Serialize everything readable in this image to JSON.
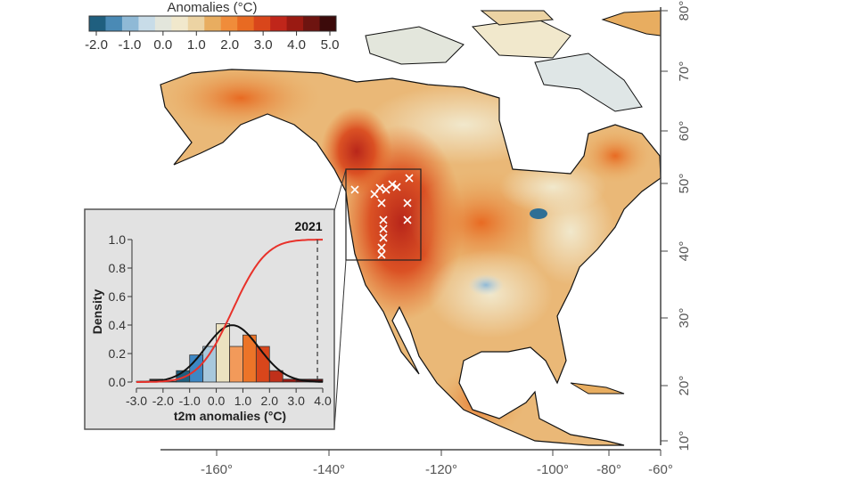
{
  "colorbar": {
    "title": "Anomalies (°C)",
    "ticks": [
      "-2.0",
      "-1.0",
      "0.0",
      "1.0",
      "2.0",
      "3.0",
      "4.0",
      "5.0"
    ],
    "colors": [
      "#1f5f7f",
      "#4a8ab5",
      "#8fb9d6",
      "#c8dce8",
      "#e3e6dc",
      "#f1e8cc",
      "#ecd3a3",
      "#e8ad60",
      "#f08c3a",
      "#e86a22",
      "#d9461b",
      "#c0261a",
      "#9a1a12",
      "#6e1410",
      "#3c0a0a"
    ]
  },
  "map": {
    "lon_labels": [
      "-160°",
      "-140°",
      "-120°",
      "-100°",
      "-80°",
      "-60°"
    ],
    "lat_labels": [
      "80°",
      "70°",
      "60°",
      "50°",
      "40°",
      "30°",
      "20°",
      "10°"
    ]
  },
  "chart_data": {
    "type": "bar",
    "xlabel": "t2m anomalies (°C)",
    "ylabel": "Density",
    "xlim": [
      -3.0,
      4.0
    ],
    "ylim": [
      0.0,
      1.0
    ],
    "xticks": [
      "-3.0",
      "-2.0",
      "-1.0",
      "0.0",
      "1.0",
      "2.0",
      "3.0",
      "4.0"
    ],
    "yticks": [
      "0.0",
      "0.2",
      "0.4",
      "0.6",
      "0.8",
      "1.0"
    ],
    "bin_edges": [
      -3.0,
      -2.5,
      -2.0,
      -1.5,
      -1.0,
      -0.5,
      0.0,
      0.5,
      1.0,
      1.5,
      2.0,
      2.5,
      3.0,
      3.5,
      4.0
    ],
    "densities": [
      0.005,
      0.02,
      0.005,
      0.08,
      0.19,
      0.25,
      0.41,
      0.25,
      0.33,
      0.25,
      0.08,
      0.02,
      0.02,
      0.02
    ],
    "bar_colors": [
      "#2a2a2a",
      "#2a2a2a",
      "#2a2a2a",
      "#1f5f7f",
      "#3d87c4",
      "#a8c8dc",
      "#ebe2c0",
      "#f29a5a",
      "#ec7428",
      "#d9461b",
      "#c0301a",
      "#9a1a12",
      "#5a1010",
      "#5a1010"
    ],
    "normal_fit": {
      "mean": 0.6,
      "sd": 1.0,
      "color": "#111111"
    },
    "cdf": {
      "mean": 0.6,
      "sd": 1.0,
      "color": "#e8312a"
    },
    "marker": {
      "x": 3.8,
      "label": "2021"
    }
  }
}
